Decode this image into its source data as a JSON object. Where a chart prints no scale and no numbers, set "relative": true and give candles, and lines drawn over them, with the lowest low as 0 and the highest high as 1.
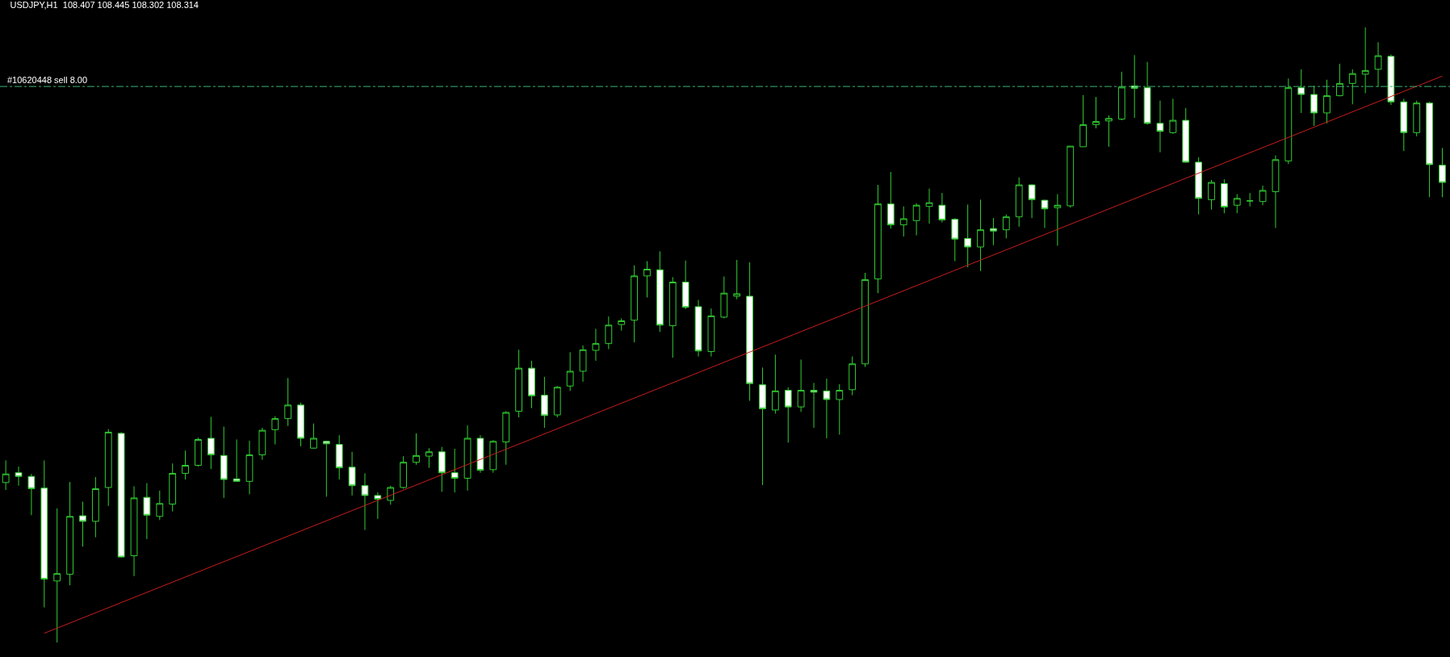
{
  "chart_data": {
    "type": "candlestick",
    "title": "USDJPY,H1  108.407 108.445 108.302 108.314",
    "relative": true,
    "color": "#32cd32",
    "categories": [
      null,
      null,
      null,
      null,
      null,
      null,
      null,
      null,
      null,
      null,
      null,
      null,
      null,
      null,
      null,
      null,
      null,
      null,
      null,
      null,
      null,
      null,
      null,
      null,
      null,
      null,
      null,
      null,
      null,
      null,
      null,
      null,
      null,
      null,
      null,
      null,
      null,
      null,
      null,
      null,
      null,
      null,
      null,
      null,
      null,
      null,
      null,
      null,
      null,
      null,
      null,
      null,
      null,
      null,
      null,
      null,
      null,
      null,
      null,
      null,
      null,
      null,
      null,
      null,
      null,
      null,
      null,
      null,
      null,
      null,
      null,
      null,
      null,
      null,
      null,
      null,
      null,
      null,
      null,
      null,
      null,
      null,
      null,
      null,
      null,
      null,
      null,
      null,
      null,
      null,
      null,
      null,
      null,
      null,
      null,
      null,
      null,
      null,
      null,
      null,
      null,
      null,
      null,
      null,
      null,
      null,
      null,
      null,
      null,
      null,
      null,
      null,
      null
    ],
    "ohlc": [
      [
        0.26,
        0.296,
        0.248,
        0.274
      ],
      [
        0.276,
        0.286,
        0.255,
        0.27
      ],
      [
        0.27,
        0.274,
        0.207,
        0.25
      ],
      [
        0.251,
        0.296,
        0.057,
        0.103
      ],
      [
        0.1,
        0.218,
        0.0,
        0.112
      ],
      [
        0.111,
        0.261,
        0.093,
        0.205
      ],
      [
        0.206,
        0.229,
        0.156,
        0.197
      ],
      [
        0.197,
        0.269,
        0.171,
        0.25
      ],
      [
        0.252,
        0.347,
        0.222,
        0.342
      ],
      [
        0.34,
        0.342,
        0.138,
        0.139
      ],
      [
        0.141,
        0.254,
        0.108,
        0.235
      ],
      [
        0.236,
        0.259,
        0.168,
        0.207
      ],
      [
        0.205,
        0.247,
        0.199,
        0.226
      ],
      [
        0.225,
        0.291,
        0.213,
        0.275
      ],
      [
        0.275,
        0.312,
        0.265,
        0.288
      ],
      [
        0.288,
        0.333,
        0.286,
        0.33
      ],
      [
        0.332,
        0.367,
        0.282,
        0.305
      ],
      [
        0.304,
        0.351,
        0.235,
        0.265
      ],
      [
        0.266,
        0.33,
        0.261,
        0.262
      ],
      [
        0.262,
        0.328,
        0.241,
        0.305
      ],
      [
        0.305,
        0.349,
        0.297,
        0.345
      ],
      [
        0.346,
        0.368,
        0.322,
        0.364
      ],
      [
        0.364,
        0.43,
        0.352,
        0.386
      ],
      [
        0.386,
        0.39,
        0.319,
        0.332
      ],
      [
        0.316,
        0.356,
        0.315,
        0.332
      ],
      [
        0.327,
        0.328,
        0.237,
        0.323
      ],
      [
        0.322,
        0.337,
        0.265,
        0.284
      ],
      [
        0.285,
        0.31,
        0.239,
        0.255
      ],
      [
        0.255,
        0.275,
        0.183,
        0.239
      ],
      [
        0.239,
        0.244,
        0.201,
        0.233
      ],
      [
        0.231,
        0.255,
        0.224,
        0.252
      ],
      [
        0.252,
        0.303,
        0.25,
        0.293
      ],
      [
        0.293,
        0.34,
        0.289,
        0.304
      ],
      [
        0.303,
        0.316,
        0.284,
        0.31
      ],
      [
        0.31,
        0.318,
        0.245,
        0.276
      ],
      [
        0.276,
        0.315,
        0.244,
        0.267
      ],
      [
        0.267,
        0.353,
        0.247,
        0.332
      ],
      [
        0.332,
        0.337,
        0.276,
        0.28
      ],
      [
        0.281,
        0.329,
        0.276,
        0.327
      ],
      [
        0.326,
        0.376,
        0.289,
        0.374
      ],
      [
        0.376,
        0.476,
        0.366,
        0.446
      ],
      [
        0.446,
        0.458,
        0.381,
        0.401
      ],
      [
        0.402,
        0.432,
        0.349,
        0.369
      ],
      [
        0.37,
        0.417,
        0.366,
        0.415
      ],
      [
        0.417,
        0.472,
        0.409,
        0.441
      ],
      [
        0.441,
        0.483,
        0.424,
        0.476
      ],
      [
        0.475,
        0.51,
        0.458,
        0.486
      ],
      [
        0.486,
        0.53,
        0.477,
        0.516
      ],
      [
        0.517,
        0.527,
        0.507,
        0.523
      ],
      [
        0.524,
        0.613,
        0.488,
        0.596
      ],
      [
        0.596,
        0.62,
        0.561,
        0.607
      ],
      [
        0.606,
        0.636,
        0.505,
        0.516
      ],
      [
        0.515,
        0.594,
        0.463,
        0.586
      ],
      [
        0.586,
        0.621,
        0.542,
        0.545
      ],
      [
        0.546,
        0.557,
        0.465,
        0.474
      ],
      [
        0.473,
        0.543,
        0.465,
        0.531
      ],
      [
        0.529,
        0.595,
        0.527,
        0.568
      ],
      [
        0.563,
        0.622,
        0.558,
        0.567
      ],
      [
        0.563,
        0.618,
        0.393,
        0.421
      ],
      [
        0.419,
        0.447,
        0.256,
        0.38
      ],
      [
        0.378,
        0.468,
        0.372,
        0.409
      ],
      [
        0.41,
        0.415,
        0.325,
        0.383
      ],
      [
        0.383,
        0.46,
        0.375,
        0.41
      ],
      [
        0.41,
        0.422,
        0.349,
        0.407
      ],
      [
        0.409,
        0.429,
        0.332,
        0.395
      ],
      [
        0.395,
        0.42,
        0.338,
        0.41
      ],
      [
        0.411,
        0.465,
        0.402,
        0.453
      ],
      [
        0.453,
        0.601,
        0.448,
        0.59
      ],
      [
        0.591,
        0.744,
        0.568,
        0.713
      ],
      [
        0.713,
        0.765,
        0.673,
        0.679
      ],
      [
        0.679,
        0.709,
        0.66,
        0.689
      ],
      [
        0.686,
        0.714,
        0.662,
        0.711
      ],
      [
        0.709,
        0.738,
        0.681,
        0.715
      ],
      [
        0.711,
        0.731,
        0.683,
        0.687
      ],
      [
        0.688,
        0.69,
        0.62,
        0.656
      ],
      [
        0.657,
        0.712,
        0.61,
        0.643
      ],
      [
        0.643,
        0.72,
        0.604,
        0.671
      ],
      [
        0.673,
        0.69,
        0.646,
        0.669
      ],
      [
        0.671,
        0.696,
        0.657,
        0.692
      ],
      [
        0.692,
        0.756,
        0.676,
        0.744
      ],
      [
        0.744,
        0.745,
        0.69,
        0.72
      ],
      [
        0.719,
        0.72,
        0.674,
        0.705
      ],
      [
        0.707,
        0.729,
        0.645,
        0.711
      ],
      [
        0.71,
        0.807,
        0.707,
        0.807
      ],
      [
        0.806,
        0.89,
        0.806,
        0.842
      ],
      [
        0.842,
        0.887,
        0.836,
        0.847
      ],
      [
        0.848,
        0.857,
        0.806,
        0.852
      ],
      [
        0.851,
        0.928,
        0.849,
        0.903
      ],
      [
        0.905,
        0.955,
        0.853,
        0.901
      ],
      [
        0.902,
        0.944,
        0.842,
        0.844
      ],
      [
        0.844,
        0.881,
        0.797,
        0.831
      ],
      [
        0.829,
        0.884,
        0.827,
        0.849
      ],
      [
        0.849,
        0.869,
        0.78,
        0.781
      ],
      [
        0.781,
        0.789,
        0.696,
        0.722
      ],
      [
        0.72,
        0.752,
        0.704,
        0.748
      ],
      [
        0.746,
        0.753,
        0.698,
        0.708
      ],
      [
        0.711,
        0.729,
        0.698,
        0.722
      ],
      [
        0.718,
        0.731,
        0.709,
        0.718
      ],
      [
        0.717,
        0.743,
        0.711,
        0.735
      ],
      [
        0.733,
        0.792,
        0.674,
        0.785
      ],
      [
        0.783,
        0.917,
        0.778,
        0.902
      ],
      [
        0.902,
        0.932,
        0.861,
        0.891
      ],
      [
        0.891,
        0.905,
        0.84,
        0.861
      ],
      [
        0.861,
        0.915,
        0.844,
        0.889
      ],
      [
        0.889,
        0.941,
        0.888,
        0.909
      ],
      [
        0.909,
        0.932,
        0.875,
        0.925
      ],
      [
        0.924,
        1.0,
        0.893,
        0.93
      ],
      [
        0.932,
        0.976,
        0.903,
        0.954
      ],
      [
        0.953,
        0.956,
        0.874,
        0.879
      ],
      [
        0.879,
        0.884,
        0.799,
        0.829
      ],
      [
        0.829,
        0.881,
        0.823,
        0.877
      ],
      [
        0.877,
        0.879,
        0.724,
        0.777
      ],
      [
        0.776,
        0.804,
        0.724,
        0.748
      ]
    ],
    "series": [
      {
        "type": "line",
        "color": "#c81e1e",
        "values": [
          null,
          null,
          null,
          0.015,
          null,
          null,
          null,
          null,
          null,
          null,
          null,
          null,
          null,
          null,
          null,
          null,
          null,
          null,
          null,
          null,
          null,
          null,
          null,
          null,
          null,
          null,
          null,
          null,
          null,
          null,
          null,
          null,
          null,
          null,
          null,
          null,
          null,
          null,
          null,
          null,
          null,
          null,
          null,
          null,
          null,
          null,
          null,
          null,
          null,
          null,
          null,
          null,
          null,
          null,
          null,
          null,
          null,
          null,
          null,
          null,
          null,
          null,
          null,
          null,
          null,
          null,
          null,
          null,
          null,
          null,
          null,
          null,
          null,
          null,
          null,
          null,
          null,
          null,
          null,
          null,
          null,
          null,
          null,
          null,
          null,
          null,
          null,
          null,
          null,
          null,
          null,
          null,
          null,
          null,
          null,
          null,
          null,
          null,
          null,
          null,
          null,
          null,
          null,
          null,
          null,
          null,
          null,
          null,
          null,
          null,
          null,
          null,
          0.921
        ]
      }
    ],
    "ref_lines": [
      {
        "axis": "y",
        "value": 0.904,
        "label": "#10620448 sell 8.00",
        "color": "#3cb371",
        "line_style": "dashdot"
      }
    ]
  }
}
